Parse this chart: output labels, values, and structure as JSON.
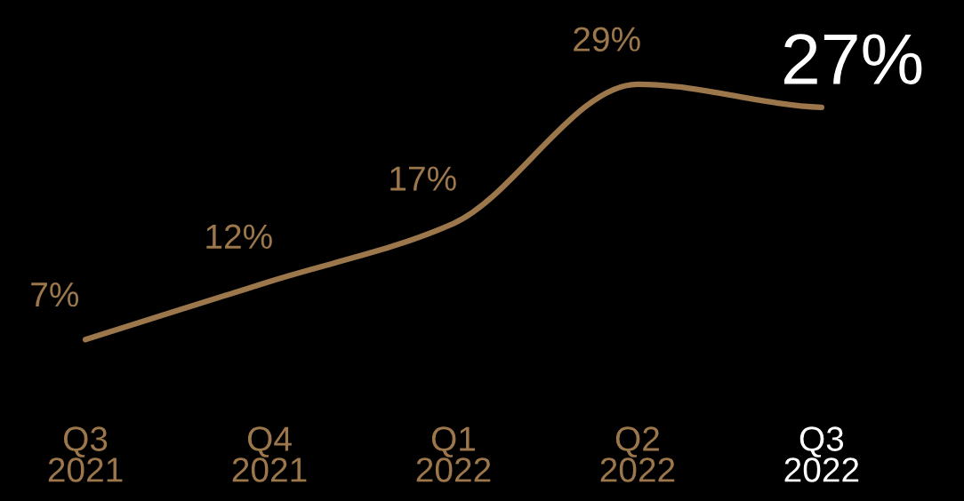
{
  "chart_data": {
    "type": "line",
    "relative": false,
    "categories": [
      "Q3\n2021",
      "Q4\n2021",
      "Q1\n2022",
      "Q2\n2022",
      "Q3\n2022"
    ],
    "series": [
      {
        "color": "#9c774c",
        "values": [
          7,
          12,
          17,
          29,
          27
        ],
        "value_labels": [
          "7%",
          "12%",
          "17%",
          "29%",
          "27%"
        ]
      }
    ],
    "grid": false,
    "legend": false,
    "marker": "none",
    "line_style": "solid"
  }
}
